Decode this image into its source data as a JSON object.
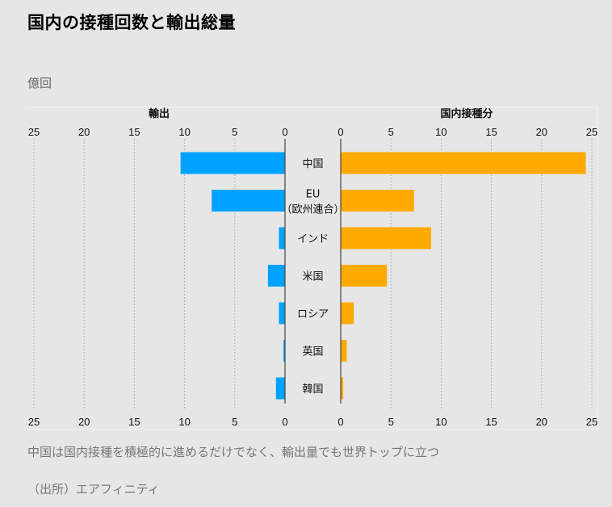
{
  "title": "国内の接種回数と輸出総量",
  "unit_label": "億回",
  "note": "中国は国内接種を積極的に進めるだけでなく、輸出量でも世界トップに立つ",
  "source": "（出所）エアフィニティ",
  "colors": {
    "export": "#00a2ff",
    "domestic": "#ffaa00",
    "background": "#e6e6e6"
  },
  "chart_data": {
    "type": "bar",
    "orientation": "horizontal-butterfly",
    "title": "国内の接種回数と輸出総量",
    "unit": "億回",
    "categories": [
      "中国",
      "EU\n（欧州連合）",
      "インド",
      "米国",
      "ロシア",
      "英国",
      "韓国"
    ],
    "category_lines": [
      [
        "中国"
      ],
      [
        "EU",
        "（欧州連合）"
      ],
      [
        "インド"
      ],
      [
        "米国"
      ],
      [
        "ロシア"
      ],
      [
        "英国"
      ],
      [
        "韓国"
      ]
    ],
    "series": [
      {
        "name": "輸出",
        "side": "left",
        "color": "#00a2ff",
        "values": [
          10.4,
          7.3,
          0.6,
          1.7,
          0.6,
          0.15,
          0.9
        ]
      },
      {
        "name": "国内接種分",
        "side": "right",
        "color": "#ffaa00",
        "values": [
          24.4,
          7.3,
          9.0,
          4.6,
          1.3,
          0.6,
          0.25
        ]
      }
    ],
    "xlim": [
      0,
      25
    ],
    "ticks": [
      0,
      5,
      10,
      15,
      20,
      25
    ],
    "grid": true,
    "grid_style": "dotted vertical",
    "tick_labels_position": "top and bottom"
  }
}
